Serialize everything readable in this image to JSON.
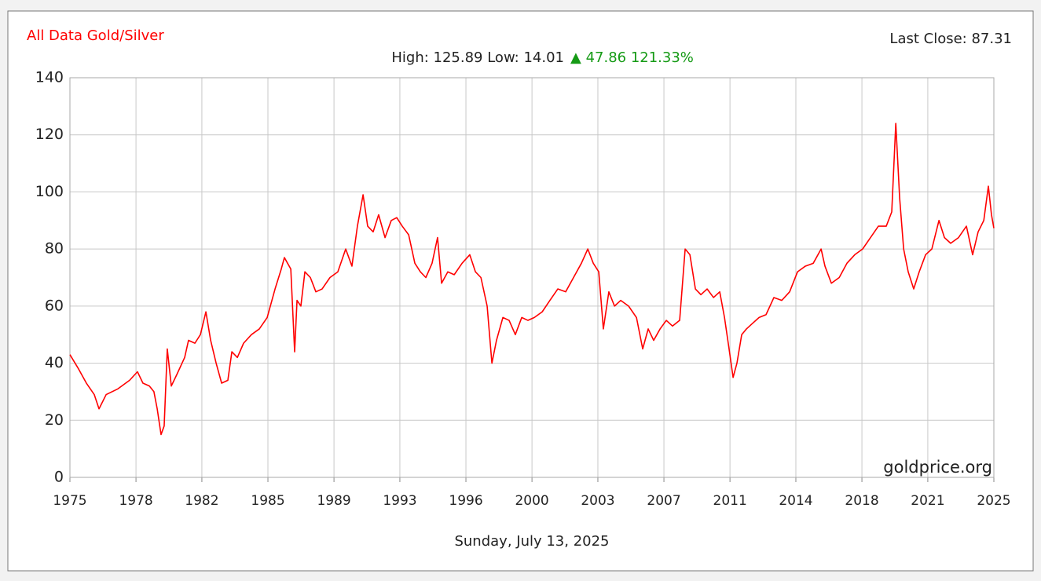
{
  "chart_data": {
    "type": "line",
    "title": "All Data Gold/Silver",
    "subtitle": "High: 125.89 Low: 14.01",
    "change": "▲ 47.86 121.33%",
    "last_close": "Last Close: 87.31",
    "watermark": "goldprice.org",
    "date": "Sunday, July 13, 2025",
    "xlim": [
      1975,
      2025.49
    ],
    "ylim": [
      0,
      140
    ],
    "yticks": [
      0,
      20,
      40,
      60,
      80,
      100,
      120,
      140
    ],
    "xticks": [
      {
        "value": 1975,
        "label": "1975"
      },
      {
        "value": 1978.61,
        "label": "1978"
      },
      {
        "value": 1982.21,
        "label": "1982"
      },
      {
        "value": 1985.82,
        "label": "1985"
      },
      {
        "value": 1989.43,
        "label": "1989"
      },
      {
        "value": 1993.03,
        "label": "1993"
      },
      {
        "value": 1996.64,
        "label": "1996"
      },
      {
        "value": 2000.25,
        "label": "2000"
      },
      {
        "value": 2003.85,
        "label": "2003"
      },
      {
        "value": 2007.46,
        "label": "2007"
      },
      {
        "value": 2011.07,
        "label": "2011"
      },
      {
        "value": 2014.67,
        "label": "2014"
      },
      {
        "value": 2018.28,
        "label": "2018"
      },
      {
        "value": 2021.88,
        "label": "2021"
      },
      {
        "value": 2025.49,
        "label": "2025"
      }
    ],
    "grid": true,
    "x": [
      1975.0,
      1975.47,
      1975.9,
      1976.33,
      1976.59,
      1976.98,
      1977.62,
      1978.26,
      1978.69,
      1978.99,
      1979.34,
      1979.59,
      1979.77,
      1979.98,
      1980.15,
      1980.32,
      1980.54,
      1980.84,
      1981.27,
      1981.48,
      1981.83,
      1982.13,
      1982.43,
      1982.69,
      1982.99,
      1983.29,
      1983.63,
      1983.85,
      1984.15,
      1984.49,
      1984.92,
      1985.35,
      1985.78,
      1986.21,
      1986.55,
      1986.72,
      1987.07,
      1987.28,
      1987.41,
      1987.62,
      1987.84,
      1988.14,
      1988.44,
      1988.78,
      1989.21,
      1989.64,
      1990.07,
      1990.41,
      1990.71,
      1991.02,
      1991.27,
      1991.57,
      1991.87,
      1992.22,
      1992.56,
      1992.86,
      1993.16,
      1993.51,
      1993.85,
      1994.15,
      1994.45,
      1994.79,
      1995.09,
      1995.31,
      1995.65,
      1996.0,
      1996.43,
      1996.85,
      1997.16,
      1997.46,
      1997.8,
      1998.06,
      1998.31,
      1998.66,
      1999.0,
      1999.34,
      1999.69,
      2000.03,
      2000.38,
      2000.81,
      2001.23,
      2001.66,
      2002.09,
      2002.52,
      2002.95,
      2003.3,
      2003.6,
      2003.9,
      2004.15,
      2004.45,
      2004.76,
      2005.1,
      2005.53,
      2005.96,
      2006.3,
      2006.6,
      2006.9,
      2007.25,
      2007.59,
      2007.93,
      2008.32,
      2008.62,
      2008.88,
      2009.18,
      2009.48,
      2009.82,
      2010.17,
      2010.51,
      2010.77,
      2011.02,
      2011.24,
      2011.45,
      2011.71,
      2011.97,
      2012.31,
      2012.66,
      2013.04,
      2013.47,
      2013.9,
      2014.33,
      2014.76,
      2015.19,
      2015.62,
      2016.05,
      2016.26,
      2016.61,
      2017.04,
      2017.46,
      2017.89,
      2018.32,
      2018.75,
      2019.18,
      2019.61,
      2019.91,
      2020.13,
      2020.34,
      2020.56,
      2020.81,
      2021.11,
      2021.41,
      2021.76,
      2022.1,
      2022.49,
      2022.79,
      2023.13,
      2023.56,
      2023.99,
      2024.33,
      2024.63,
      2024.94,
      2025.19,
      2025.36,
      2025.49
    ],
    "series": [
      {
        "name": "Gold/Silver",
        "color": "#ff0000",
        "values": [
          43,
          38,
          33,
          29,
          24,
          29,
          31,
          34,
          37,
          33,
          32,
          30,
          24,
          15,
          18,
          45,
          32,
          36,
          42,
          48,
          47,
          50,
          58,
          48,
          40,
          33,
          34,
          44,
          42,
          47,
          50,
          52,
          56,
          66,
          73,
          77,
          73,
          44,
          62,
          60,
          72,
          70,
          65,
          66,
          70,
          72,
          80,
          74,
          88,
          99,
          88,
          86,
          92,
          84,
          90,
          91,
          88,
          85,
          75,
          72,
          70,
          75,
          84,
          68,
          72,
          71,
          75,
          78,
          72,
          70,
          60,
          40,
          48,
          56,
          55,
          50,
          56,
          55,
          56,
          58,
          62,
          66,
          65,
          70,
          75,
          80,
          75,
          72,
          52,
          65,
          60,
          62,
          60,
          56,
          45,
          52,
          48,
          52,
          55,
          53,
          55,
          80,
          78,
          66,
          64,
          66,
          63,
          65,
          56,
          45,
          35,
          40,
          50,
          52,
          54,
          56,
          57,
          63,
          62,
          65,
          72,
          74,
          75,
          80,
          74,
          68,
          70,
          75,
          78,
          80,
          84,
          88,
          88,
          93,
          124,
          98,
          80,
          72,
          66,
          72,
          78,
          80,
          90,
          84,
          82,
          84,
          88,
          78,
          86,
          90,
          102,
          92,
          87.31
        ]
      }
    ]
  }
}
